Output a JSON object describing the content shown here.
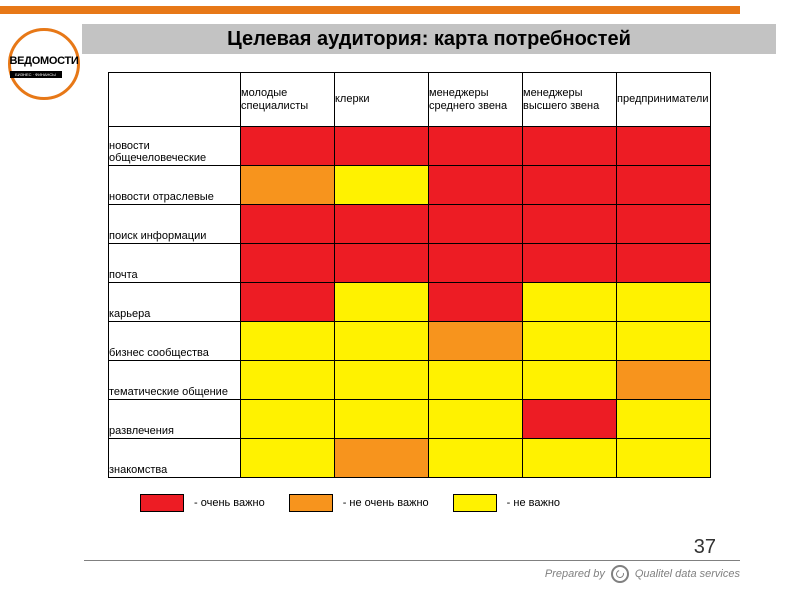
{
  "colors": {
    "accent": "#e77817",
    "title_band": "#c3c3c3",
    "red": "#ed1c24",
    "orange": "#f7941d",
    "yellow": "#fff200",
    "border": "#000000",
    "footer_gray": "#808080",
    "white": "#ffffff"
  },
  "logo": {
    "main": "ВЕДОМОСТИ",
    "sub": "БИЗНЕС · ФИНАНСЫ"
  },
  "title": "Целевая аудитория: карта потребностей",
  "table": {
    "columns": [
      "молодые специалисты",
      "клерки",
      "менеджеры среднего звена",
      "менеджеры высшего звена",
      "предприниматели"
    ],
    "rows": [
      {
        "label": "новости общечеловеческие",
        "cells": [
          "red",
          "red",
          "red",
          "red",
          "red"
        ]
      },
      {
        "label": "новости отраслевые",
        "cells": [
          "orange",
          "yellow",
          "red",
          "red",
          "red"
        ]
      },
      {
        "label": "поиск информации",
        "cells": [
          "red",
          "red",
          "red",
          "red",
          "red"
        ]
      },
      {
        "label": "почта",
        "cells": [
          "red",
          "red",
          "red",
          "red",
          "red"
        ]
      },
      {
        "label": "карьера",
        "cells": [
          "red",
          "yellow",
          "red",
          "yellow",
          "yellow"
        ]
      },
      {
        "label": "бизнес сообщества",
        "cells": [
          "yellow",
          "yellow",
          "orange",
          "yellow",
          "yellow"
        ]
      },
      {
        "label": " тематические общение",
        "cells": [
          "yellow",
          "yellow",
          "yellow",
          "yellow",
          "orange"
        ]
      },
      {
        "label": "развлечения",
        "cells": [
          "yellow",
          "yellow",
          "yellow",
          "red",
          "yellow"
        ]
      },
      {
        "label": "знакомства",
        "cells": [
          "yellow",
          "orange",
          "yellow",
          "yellow",
          "yellow"
        ]
      }
    ]
  },
  "legend": {
    "items": [
      {
        "swatch": "red",
        "label": "- очень важно"
      },
      {
        "swatch": "orange",
        "label": "- не очень важно"
      },
      {
        "swatch": "yellow",
        "label": "- не важно"
      }
    ]
  },
  "page_number": "37",
  "footer": {
    "prepared": "Prepared by",
    "company": "Qualitel data services"
  }
}
